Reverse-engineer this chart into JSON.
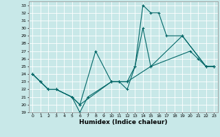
{
  "title": "",
  "xlabel": "Humidex (Indice chaleur)",
  "bg_color": "#c8e8e8",
  "grid_color": "#ffffff",
  "line_color": "#006666",
  "xmin": 0,
  "xmax": 23,
  "ymin": 19,
  "ymax": 33,
  "line1_x": [
    0,
    1,
    2,
    3,
    5,
    6,
    7,
    10,
    11,
    12,
    13,
    14,
    15,
    16,
    17,
    19,
    22,
    23
  ],
  "line1_y": [
    24,
    23,
    22,
    22,
    21,
    19,
    21,
    23,
    23,
    22,
    25,
    33,
    32,
    32,
    29,
    29,
    25,
    25
  ],
  "line2_x": [
    0,
    1,
    2,
    3,
    5,
    6,
    8,
    10,
    11,
    12,
    13,
    14,
    15,
    20,
    21,
    22,
    23
  ],
  "line2_y": [
    24,
    23,
    22,
    22,
    21,
    20,
    27,
    23,
    23,
    23,
    25,
    30,
    25,
    27,
    26,
    25,
    25
  ],
  "line3_x": [
    0,
    1,
    2,
    3,
    5,
    6,
    10,
    11,
    12,
    15,
    19,
    22,
    23
  ],
  "line3_y": [
    24,
    23,
    22,
    22,
    21,
    20,
    23,
    23,
    23,
    25,
    29,
    25,
    25
  ]
}
